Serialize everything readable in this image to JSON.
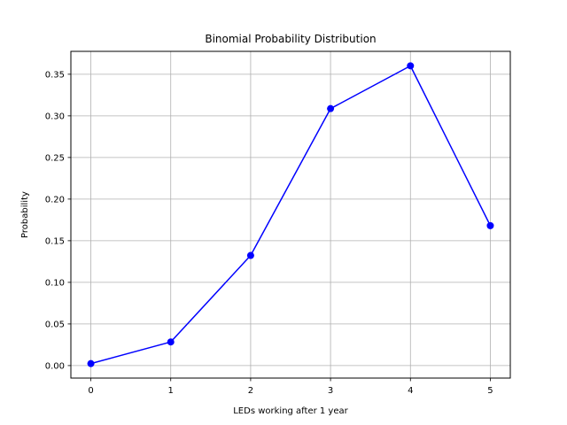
{
  "chart_data": {
    "type": "line",
    "title": "Binomial Probability Distribution",
    "xlabel": "LEDs working after 1 year",
    "ylabel": "Probability",
    "x": [
      0,
      1,
      2,
      3,
      4,
      5
    ],
    "series": [
      {
        "values": [
          0.0024,
          0.0284,
          0.1323,
          0.3087,
          0.3601,
          0.1681
        ],
        "color": "#0000ff",
        "marker": "circle"
      }
    ],
    "xlim": [
      -0.25,
      5.25
    ],
    "ylim": [
      -0.015,
      0.3775
    ],
    "xticks": [
      "0",
      "1",
      "2",
      "3",
      "4",
      "5"
    ],
    "yticks": [
      "0.00",
      "0.05",
      "0.10",
      "0.15",
      "0.20",
      "0.25",
      "0.30",
      "0.35"
    ],
    "grid": true,
    "colors": {
      "grid": "#b0b0b0",
      "axes": "#000000"
    }
  }
}
